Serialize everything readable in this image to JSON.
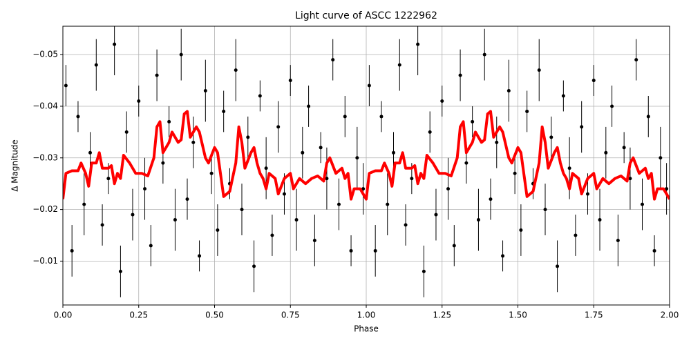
{
  "chart_data": {
    "type": "scatter",
    "title": "Light curve of ASCC 1222962",
    "xlabel": "Phase",
    "ylabel": "Δ Magnitude",
    "xlim": [
      0,
      2
    ],
    "ylim": [
      -0.0015,
      -0.0555
    ],
    "xticks": [
      {
        "value": 0,
        "label": "0.00"
      },
      {
        "value": 0.25,
        "label": "0.25"
      },
      {
        "value": 0.5,
        "label": "0.50"
      },
      {
        "value": 0.75,
        "label": "0.75"
      },
      {
        "value": 1,
        "label": "1.00"
      },
      {
        "value": 1.25,
        "label": "1.25"
      },
      {
        "value": 1.5,
        "label": "1.50"
      },
      {
        "value": 1.75,
        "label": "1.75"
      },
      {
        "value": 2,
        "label": "2.00"
      }
    ],
    "yticks": [
      {
        "value": -0.05,
        "label": "−0.05"
      },
      {
        "value": -0.04,
        "label": "−0.04"
      },
      {
        "value": -0.03,
        "label": "−0.03"
      },
      {
        "value": -0.02,
        "label": "−0.02"
      },
      {
        "value": -0.01,
        "label": "−0.01"
      }
    ],
    "grid": true,
    "series": [
      {
        "type": "errorbar",
        "color": "#000000",
        "x": [
          0.01,
          0.03,
          0.05,
          0.07,
          0.09,
          0.11,
          0.13,
          0.15,
          0.17,
          0.19,
          0.21,
          0.23,
          0.25,
          0.27,
          0.29,
          0.31,
          0.33,
          0.35,
          0.37,
          0.39,
          0.41,
          0.43,
          0.45,
          0.47,
          0.49,
          0.51,
          0.53,
          0.55,
          0.57,
          0.59,
          0.61,
          0.63,
          0.65,
          0.67,
          0.69,
          0.71,
          0.73,
          0.75,
          0.77,
          0.79,
          0.81,
          0.83,
          0.85,
          0.87,
          0.89,
          0.91,
          0.93,
          0.95,
          0.97,
          0.99,
          1.01,
          1.03,
          1.05,
          1.07,
          1.09,
          1.11,
          1.13,
          1.15,
          1.17,
          1.19,
          1.21,
          1.23,
          1.25,
          1.27,
          1.29,
          1.31,
          1.33,
          1.35,
          1.37,
          1.39,
          1.41,
          1.43,
          1.45,
          1.47,
          1.49,
          1.51,
          1.53,
          1.55,
          1.57,
          1.59,
          1.61,
          1.63,
          1.65,
          1.67,
          1.69,
          1.71,
          1.73,
          1.75,
          1.77,
          1.79,
          1.81,
          1.83,
          1.85,
          1.87,
          1.89,
          1.91,
          1.93,
          1.95,
          1.97,
          1.99
        ],
        "values": [
          -0.044,
          -0.012,
          -0.038,
          -0.021,
          -0.031,
          -0.048,
          -0.017,
          -0.026,
          -0.052,
          -0.008,
          -0.035,
          -0.019,
          -0.041,
          -0.024,
          -0.013,
          -0.046,
          -0.029,
          -0.037,
          -0.018,
          -0.05,
          -0.022,
          -0.033,
          -0.011,
          -0.043,
          -0.027,
          -0.016,
          -0.039,
          -0.025,
          -0.047,
          -0.02,
          -0.034,
          -0.009,
          -0.042,
          -0.028,
          -0.015,
          -0.036,
          -0.023,
          -0.045,
          -0.018,
          -0.031,
          -0.04,
          -0.014,
          -0.032,
          -0.026,
          -0.049,
          -0.021,
          -0.038,
          -0.012,
          -0.03,
          -0.024,
          -0.044,
          -0.012,
          -0.038,
          -0.021,
          -0.031,
          -0.048,
          -0.017,
          -0.026,
          -0.052,
          -0.008,
          -0.035,
          -0.019,
          -0.041,
          -0.024,
          -0.013,
          -0.046,
          -0.029,
          -0.037,
          -0.018,
          -0.05,
          -0.022,
          -0.033,
          -0.011,
          -0.043,
          -0.027,
          -0.016,
          -0.039,
          -0.025,
          -0.047,
          -0.02,
          -0.034,
          -0.009,
          -0.042,
          -0.028,
          -0.015,
          -0.036,
          -0.023,
          -0.045,
          -0.018,
          -0.031,
          -0.04,
          -0.014,
          -0.032,
          -0.026,
          -0.049,
          -0.021,
          -0.038,
          -0.012,
          -0.03,
          -0.024
        ],
        "errors": [
          0.004,
          0.005,
          0.003,
          0.006,
          0.004,
          0.005,
          0.004,
          0.003,
          0.006,
          0.005,
          0.004,
          0.005,
          0.003,
          0.006,
          0.004,
          0.005,
          0.004,
          0.003,
          0.006,
          0.005,
          0.004,
          0.005,
          0.003,
          0.006,
          0.004,
          0.005,
          0.004,
          0.003,
          0.006,
          0.005,
          0.004,
          0.005,
          0.003,
          0.006,
          0.004,
          0.005,
          0.004,
          0.003,
          0.006,
          0.005,
          0.004,
          0.005,
          0.003,
          0.006,
          0.004,
          0.005,
          0.004,
          0.003,
          0.006,
          0.005,
          0.004,
          0.005,
          0.003,
          0.006,
          0.004,
          0.005,
          0.004,
          0.003,
          0.006,
          0.005,
          0.004,
          0.005,
          0.003,
          0.006,
          0.004,
          0.005,
          0.004,
          0.003,
          0.006,
          0.005,
          0.004,
          0.005,
          0.003,
          0.006,
          0.004,
          0.005,
          0.004,
          0.003,
          0.006,
          0.005,
          0.004,
          0.005,
          0.003,
          0.006,
          0.004,
          0.005,
          0.004,
          0.003,
          0.006,
          0.005,
          0.004,
          0.005,
          0.003,
          0.006,
          0.004,
          0.005,
          0.004,
          0.003,
          0.006,
          0.005
        ]
      },
      {
        "type": "line",
        "color": "#ff0000",
        "x": [
          0,
          0.01,
          0.03,
          0.05,
          0.06,
          0.075,
          0.085,
          0.095,
          0.11,
          0.12,
          0.13,
          0.15,
          0.16,
          0.17,
          0.18,
          0.19,
          0.2,
          0.22,
          0.24,
          0.26,
          0.28,
          0.3,
          0.31,
          0.32,
          0.33,
          0.35,
          0.36,
          0.38,
          0.39,
          0.4,
          0.41,
          0.42,
          0.44,
          0.45,
          0.47,
          0.48,
          0.5,
          0.51,
          0.53,
          0.55,
          0.57,
          0.58,
          0.59,
          0.6,
          0.62,
          0.63,
          0.64,
          0.65,
          0.66,
          0.67,
          0.68,
          0.7,
          0.71,
          0.73,
          0.75,
          0.76,
          0.78,
          0.8,
          0.82,
          0.84,
          0.86,
          0.87,
          0.88,
          0.9,
          0.92,
          0.93,
          0.94,
          0.95,
          0.96,
          0.98,
          1.0,
          1.01,
          1.03,
          1.05,
          1.06,
          1.075,
          1.085,
          1.095,
          1.11,
          1.12,
          1.13,
          1.15,
          1.16,
          1.17,
          1.18,
          1.19,
          1.2,
          1.22,
          1.24,
          1.26,
          1.28,
          1.3,
          1.31,
          1.32,
          1.33,
          1.35,
          1.36,
          1.38,
          1.39,
          1.4,
          1.41,
          1.42,
          1.44,
          1.45,
          1.47,
          1.48,
          1.5,
          1.51,
          1.53,
          1.55,
          1.57,
          1.58,
          1.59,
          1.6,
          1.62,
          1.63,
          1.64,
          1.65,
          1.66,
          1.67,
          1.68,
          1.7,
          1.71,
          1.73,
          1.75,
          1.76,
          1.78,
          1.8,
          1.82,
          1.84,
          1.86,
          1.87,
          1.88,
          1.9,
          1.92,
          1.93,
          1.94,
          1.95,
          1.96,
          1.98,
          2.0
        ],
        "values": [
          -0.022,
          -0.027,
          -0.0275,
          -0.0275,
          -0.029,
          -0.027,
          -0.0245,
          -0.029,
          -0.029,
          -0.031,
          -0.028,
          -0.028,
          -0.0285,
          -0.025,
          -0.027,
          -0.026,
          -0.0305,
          -0.029,
          -0.027,
          -0.027,
          -0.0265,
          -0.03,
          -0.036,
          -0.037,
          -0.031,
          -0.033,
          -0.035,
          -0.033,
          -0.0335,
          -0.0385,
          -0.039,
          -0.034,
          -0.036,
          -0.035,
          -0.03,
          -0.029,
          -0.032,
          -0.031,
          -0.0225,
          -0.0235,
          -0.029,
          -0.036,
          -0.033,
          -0.028,
          -0.031,
          -0.032,
          -0.029,
          -0.027,
          -0.026,
          -0.024,
          -0.027,
          -0.026,
          -0.023,
          -0.026,
          -0.027,
          -0.024,
          -0.026,
          -0.025,
          -0.026,
          -0.0265,
          -0.0255,
          -0.029,
          -0.03,
          -0.027,
          -0.028,
          -0.026,
          -0.027,
          -0.022,
          -0.024,
          -0.024,
          -0.022,
          -0.027,
          -0.0275,
          -0.0275,
          -0.029,
          -0.027,
          -0.0245,
          -0.029,
          -0.029,
          -0.031,
          -0.028,
          -0.028,
          -0.0285,
          -0.025,
          -0.027,
          -0.026,
          -0.0305,
          -0.029,
          -0.027,
          -0.027,
          -0.0265,
          -0.03,
          -0.036,
          -0.037,
          -0.031,
          -0.033,
          -0.035,
          -0.033,
          -0.0335,
          -0.0385,
          -0.039,
          -0.034,
          -0.036,
          -0.035,
          -0.03,
          -0.029,
          -0.032,
          -0.031,
          -0.0225,
          -0.0235,
          -0.029,
          -0.036,
          -0.033,
          -0.028,
          -0.031,
          -0.032,
          -0.029,
          -0.027,
          -0.026,
          -0.024,
          -0.027,
          -0.026,
          -0.023,
          -0.026,
          -0.027,
          -0.024,
          -0.026,
          -0.025,
          -0.026,
          -0.0265,
          -0.0255,
          -0.029,
          -0.03,
          -0.027,
          -0.028,
          -0.026,
          -0.027,
          -0.022,
          -0.024,
          -0.024,
          -0.022
        ]
      }
    ]
  }
}
